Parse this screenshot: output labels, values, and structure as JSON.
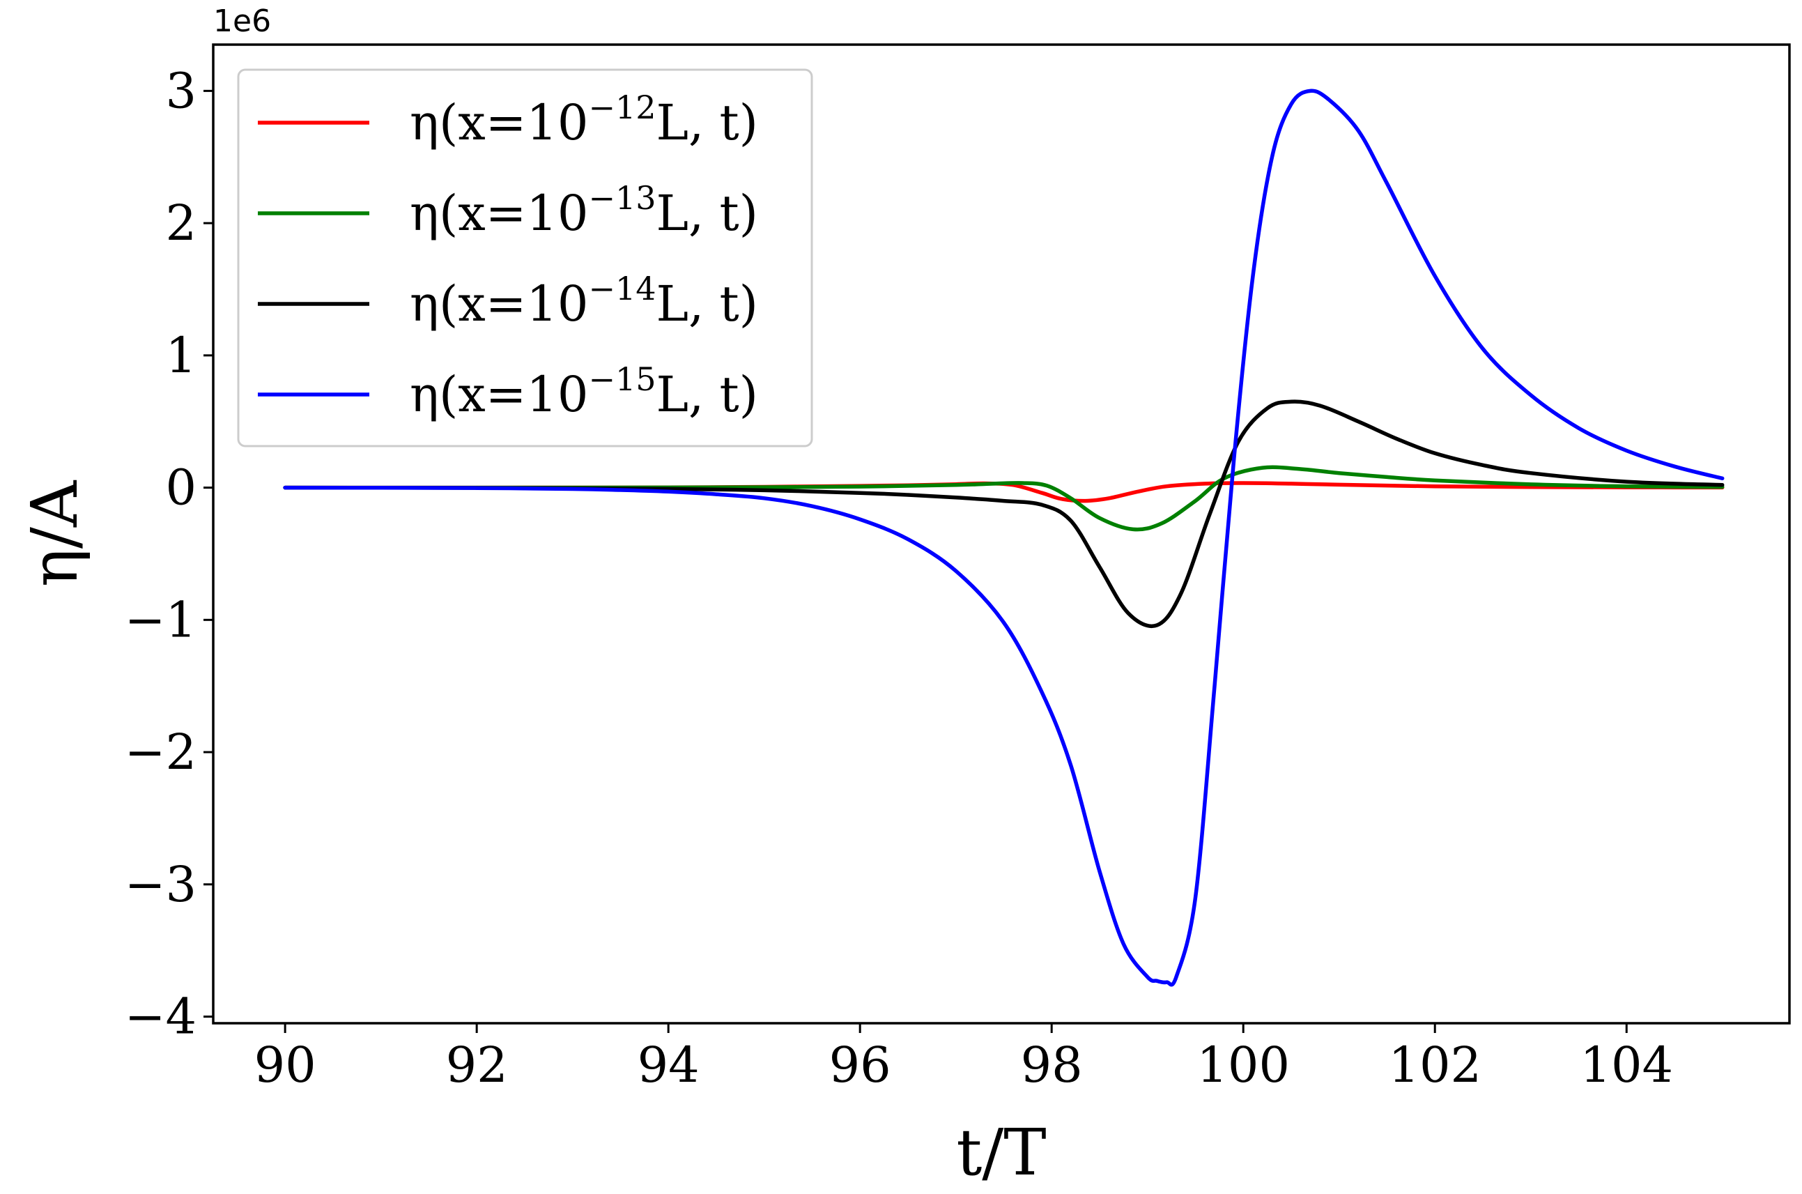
{
  "chart_data": {
    "type": "line",
    "xlabel": "t/T",
    "ylabel": "η/A",
    "y_offset_label": "1e6",
    "y_scale": 1000000,
    "xlim": [
      89.25,
      105.7
    ],
    "ylim": [
      -4.05,
      3.35
    ],
    "x_ticks": [
      90,
      92,
      94,
      96,
      98,
      100,
      102,
      104
    ],
    "y_ticks": [
      3,
      2,
      1,
      0,
      -1,
      -2,
      -3,
      -4
    ],
    "y_tick_labels": [
      "3",
      "2",
      "1",
      "0",
      "−1",
      "−2",
      "−3",
      "−4"
    ],
    "grid": false,
    "legend": {
      "placement": "top-left",
      "entries": [
        {
          "prefix": "η(x=10",
          "sup": "−12",
          "suffix": "L, t)",
          "color": "#ff0000"
        },
        {
          "prefix": "η(x=10",
          "sup": "−13",
          "suffix": "L, t)",
          "color": "#008000"
        },
        {
          "prefix": "η(x=10",
          "sup": "−14",
          "suffix": "L, t)",
          "color": "#000000"
        },
        {
          "prefix": "η(x=10",
          "sup": "−15",
          "suffix": "L, t)",
          "color": "#0000ff"
        }
      ]
    },
    "series": [
      {
        "name": "η(x=10−12L, t)",
        "color": "#ff0000",
        "x": [
          90,
          92,
          94,
          95,
          96,
          96.5,
          97,
          97.3,
          97.6,
          97.9,
          98.1,
          98.35,
          98.6,
          98.9,
          99.2,
          99.6,
          100,
          100.5,
          101,
          102,
          103,
          104,
          105
        ],
        "y": [
          0,
          0,
          0.002,
          0.006,
          0.013,
          0.018,
          0.026,
          0.032,
          0.02,
          -0.04,
          -0.085,
          -0.1,
          -0.08,
          -0.03,
          0.01,
          0.03,
          0.035,
          0.03,
          0.022,
          0.01,
          0.004,
          0.002,
          0.001
        ]
      },
      {
        "name": "η(x=10−13L, t)",
        "color": "#008000",
        "x": [
          90,
          92,
          94,
          95,
          96,
          97,
          97.4,
          97.7,
          97.95,
          98.2,
          98.5,
          98.85,
          99.15,
          99.5,
          99.8,
          100.2,
          100.6,
          101,
          101.5,
          102,
          103,
          104,
          105
        ],
        "y": [
          0,
          0,
          0.001,
          0.003,
          0.008,
          0.02,
          0.03,
          0.035,
          0.015,
          -0.08,
          -0.23,
          -0.315,
          -0.27,
          -0.1,
          0.07,
          0.15,
          0.14,
          0.11,
          0.08,
          0.055,
          0.025,
          0.01,
          0.005
        ]
      },
      {
        "name": "η(x=10−14L, t)",
        "color": "#000000",
        "x": [
          90,
          92,
          94,
          95,
          96,
          96.5,
          97,
          97.5,
          97.9,
          98.2,
          98.5,
          98.8,
          99.1,
          99.35,
          99.65,
          99.95,
          100.25,
          100.5,
          100.8,
          101.2,
          101.6,
          102,
          102.5,
          103,
          104,
          105
        ],
        "y": [
          0,
          -0.002,
          -0.01,
          -0.02,
          -0.04,
          -0.055,
          -0.075,
          -0.1,
          -0.13,
          -0.25,
          -0.6,
          -0.95,
          -1.04,
          -0.8,
          -0.2,
          0.35,
          0.6,
          0.65,
          0.62,
          0.5,
          0.37,
          0.26,
          0.17,
          0.11,
          0.045,
          0.02
        ]
      },
      {
        "name": "η(x=10−15L, t)",
        "color": "#0000ff",
        "x": [
          90,
          91,
          92,
          93,
          93.5,
          94,
          94.5,
          95,
          95.5,
          96,
          96.5,
          97,
          97.5,
          97.9,
          98.2,
          98.5,
          98.75,
          99,
          99.1,
          99.2,
          99.3,
          99.5,
          99.7,
          99.9,
          100.1,
          100.3,
          100.5,
          100.7,
          100.9,
          101.2,
          101.5,
          102,
          102.5,
          103,
          103.5,
          104,
          104.5,
          105
        ],
        "y": [
          0,
          -0.001,
          -0.003,
          -0.01,
          -0.018,
          -0.03,
          -0.05,
          -0.08,
          -0.14,
          -0.24,
          -0.39,
          -0.63,
          -1.02,
          -1.55,
          -2.1,
          -2.9,
          -3.45,
          -3.7,
          -3.73,
          -3.74,
          -3.7,
          -3.1,
          -1.5,
          0.2,
          1.6,
          2.5,
          2.9,
          3.0,
          2.93,
          2.7,
          2.3,
          1.6,
          1.05,
          0.7,
          0.45,
          0.28,
          0.16,
          0.07
        ]
      }
    ]
  }
}
